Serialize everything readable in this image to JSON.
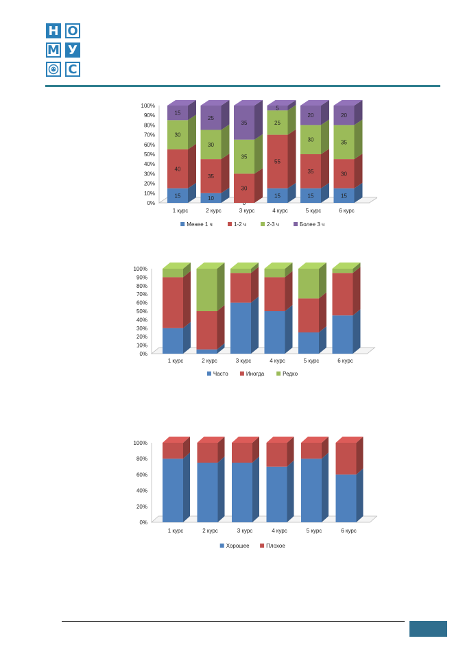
{
  "logo": {
    "letters": [
      [
        "Н",
        "О"
      ],
      [
        "М",
        "У"
      ],
      [
        "seal",
        "С"
      ]
    ]
  },
  "colors": {
    "accent": "#2f7f8f",
    "logo": "#2a7fb8",
    "page_tab": "#2f6e8e"
  },
  "chart_data": [
    {
      "type": "bar",
      "stacked": true,
      "three_d": true,
      "categories": [
        "1 курс",
        "2 курс",
        "3 курс",
        "4 курс",
        "5 курс",
        "6 курс"
      ],
      "series": [
        {
          "name": "Менее 1 ч",
          "color": "#4f81bd",
          "values": [
            15,
            10,
            0,
            15,
            15,
            15
          ]
        },
        {
          "name": "1-2 ч",
          "color": "#c0504d",
          "values": [
            40,
            35,
            30,
            55,
            35,
            30
          ]
        },
        {
          "name": "2-3 ч",
          "color": "#9bbb59",
          "values": [
            30,
            30,
            35,
            25,
            30,
            35
          ]
        },
        {
          "name": "Более 3 ч",
          "color": "#8064a2",
          "values": [
            15,
            25,
            35,
            5,
            20,
            20
          ]
        }
      ],
      "data_labels": true,
      "yticks": [
        "0%",
        "10%",
        "20%",
        "30%",
        "40%",
        "50%",
        "60%",
        "70%",
        "80%",
        "90%",
        "100%"
      ],
      "ylim": [
        0,
        100
      ],
      "legend": "bottom"
    },
    {
      "type": "bar",
      "stacked": true,
      "three_d": true,
      "categories": [
        "1 курс",
        "2 курс",
        "3 курс",
        "4 курс",
        "5 курс",
        "6 курс"
      ],
      "series": [
        {
          "name": "Часто",
          "color": "#4f81bd",
          "values": [
            30,
            5,
            60,
            50,
            25,
            45
          ]
        },
        {
          "name": "Иногда",
          "color": "#c0504d",
          "values": [
            60,
            45,
            35,
            40,
            40,
            50
          ]
        },
        {
          "name": "Редко",
          "color": "#9bbb59",
          "values": [
            10,
            50,
            5,
            10,
            35,
            5
          ]
        }
      ],
      "data_labels": false,
      "yticks": [
        "0%",
        "10%",
        "20%",
        "30%",
        "40%",
        "50%",
        "60%",
        "70%",
        "80%",
        "90%",
        "100%"
      ],
      "ylim": [
        0,
        100
      ],
      "legend": "bottom"
    },
    {
      "type": "bar",
      "stacked": true,
      "three_d": true,
      "categories": [
        "1 курс",
        "2 курс",
        "3 курс",
        "4 курс",
        "5 курс",
        "6 курс"
      ],
      "series": [
        {
          "name": "Хорошее",
          "color": "#4f81bd",
          "values": [
            80,
            75,
            75,
            70,
            80,
            60
          ]
        },
        {
          "name": "Плохое",
          "color": "#c0504d",
          "values": [
            20,
            25,
            25,
            30,
            20,
            40
          ]
        }
      ],
      "data_labels": false,
      "yticks": [
        "0%",
        "20%",
        "40%",
        "60%",
        "80%",
        "100%"
      ],
      "ylim": [
        0,
        100
      ],
      "legend": "bottom"
    }
  ]
}
